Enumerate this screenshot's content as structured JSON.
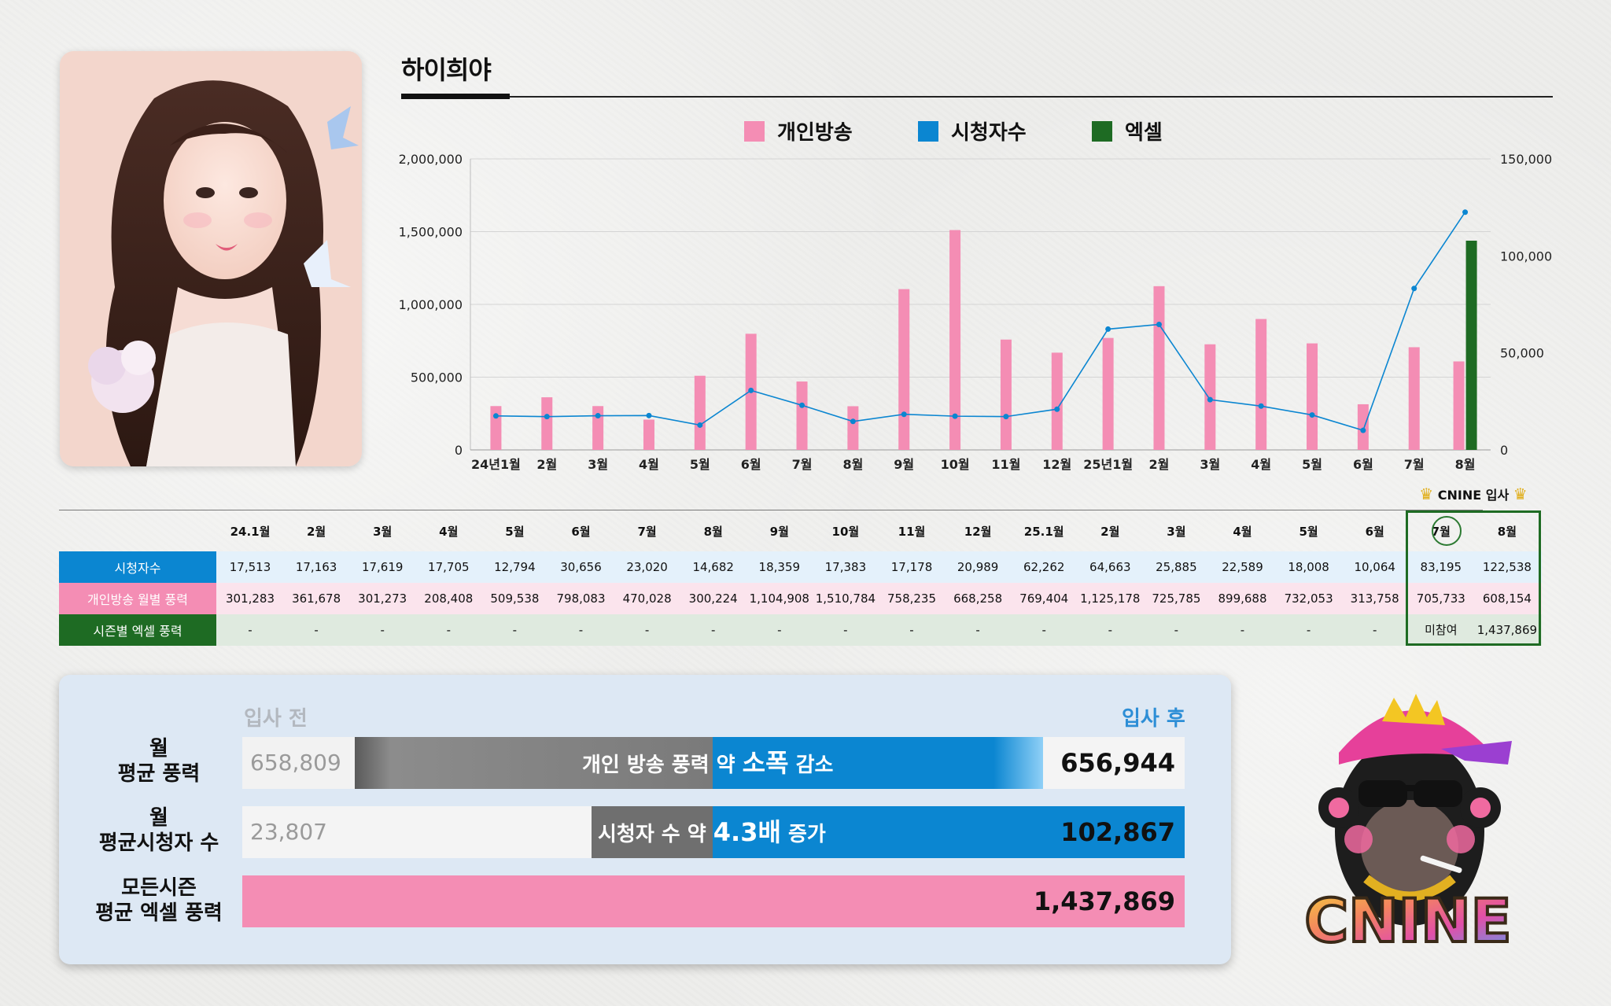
{
  "streamer": {
    "name": "하이희야"
  },
  "legend": [
    {
      "label": "개인방송",
      "color": "#f48db4"
    },
    {
      "label": "시청자수",
      "color": "#0b86d1"
    },
    {
      "label": "엑셀",
      "color": "#1e6b23"
    }
  ],
  "chart_data": {
    "type": "bar",
    "categories": [
      "24년1월",
      "2월",
      "3월",
      "4월",
      "5월",
      "6월",
      "7월",
      "8월",
      "9월",
      "10월",
      "11월",
      "12월",
      "25년1월",
      "2월",
      "3월",
      "4월",
      "5월",
      "6월",
      "7월",
      "8월"
    ],
    "series": [
      {
        "name": "개인방송",
        "type": "bar",
        "axis": "left",
        "color": "#f48db4",
        "values": [
          301283,
          361678,
          301273,
          208408,
          509538,
          798083,
          470028,
          300224,
          1104908,
          1510784,
          758235,
          668258,
          769404,
          1125178,
          725785,
          899688,
          732053,
          313758,
          705733,
          608154
        ]
      },
      {
        "name": "시청자수",
        "type": "line",
        "axis": "right",
        "color": "#0b86d1",
        "values": [
          17513,
          17163,
          17619,
          17705,
          12794,
          30656,
          23020,
          14682,
          18359,
          17383,
          17178,
          20989,
          62262,
          64663,
          25885,
          22589,
          18008,
          10064,
          83195,
          122538
        ]
      },
      {
        "name": "엑셀",
        "type": "bar",
        "axis": "left",
        "color": "#1e6b23",
        "values": [
          null,
          null,
          null,
          null,
          null,
          null,
          null,
          null,
          null,
          null,
          null,
          null,
          null,
          null,
          null,
          null,
          null,
          null,
          null,
          1437869
        ]
      }
    ],
    "ylim_left": [
      0,
      2000000
    ],
    "yticks_left": [
      "0",
      "500,000",
      "1,000,000",
      "1,500,000",
      "2,000,000"
    ],
    "ylim_right": [
      0,
      150000
    ],
    "yticks_right": [
      "0",
      "50,000",
      "100,000",
      "150,000"
    ],
    "grid": true
  },
  "table": {
    "headers": [
      "24.1월",
      "2월",
      "3월",
      "4월",
      "5월",
      "6월",
      "7월",
      "8월",
      "9월",
      "10월",
      "11월",
      "12월",
      "25.1월",
      "2월",
      "3월",
      "4월",
      "5월",
      "6월",
      "7월",
      "8월"
    ],
    "join_label": "CNINE 입사",
    "rows": [
      {
        "label": "시청자수",
        "label_color": "#0b86d1",
        "bg": "#e4f1fb",
        "cells": [
          "17,513",
          "17,163",
          "17,619",
          "17,705",
          "12,794",
          "30,656",
          "23,020",
          "14,682",
          "18,359",
          "17,383",
          "17,178",
          "20,989",
          "62,262",
          "64,663",
          "25,885",
          "22,589",
          "18,008",
          "10,064",
          "83,195",
          "122,538"
        ]
      },
      {
        "label": "개인방송 월별 풍력",
        "label_color": "#f48db4",
        "bg": "#fbe4ed",
        "cells": [
          "301,283",
          "361,678",
          "301,273",
          "208,408",
          "509,538",
          "798,083",
          "470,028",
          "300,224",
          "1,104,908",
          "1,510,784",
          "758,235",
          "668,258",
          "769,404",
          "1,125,178",
          "725,785",
          "899,688",
          "732,053",
          "313,758",
          "705,733",
          "608,154"
        ]
      },
      {
        "label": "시즌별 엑셀 풍력",
        "label_color": "#1e6b23",
        "bg": "#dfeadf",
        "cells": [
          "-",
          "-",
          "-",
          "-",
          "-",
          "-",
          "-",
          "-",
          "-",
          "-",
          "-",
          "-",
          "-",
          "-",
          "-",
          "-",
          "-",
          "-",
          "미참여",
          "1,437,869"
        ]
      }
    ]
  },
  "summary": {
    "before_label": "입사 전",
    "after_label": "입사 후",
    "rows": [
      {
        "label_line1": "월",
        "label_line2": "평균 풍력",
        "before": "658,809",
        "after": "656,944",
        "middle_prefix": "개인 방송 풍력 약 ",
        "middle_emph": "소폭",
        "middle_suffix": " 감소"
      },
      {
        "label_line1": "월",
        "label_line2": "평균시청자 수",
        "before": "23,807",
        "after": "102,867",
        "middle_prefix": "시청자 수 약 ",
        "middle_emph": "4.3배",
        "middle_suffix": " 증가"
      },
      {
        "label_line1": "모든시즌",
        "label_line2": "평균 엑셀 풍력",
        "value": "1,437,869"
      }
    ]
  },
  "logo": {
    "text": "CNINE"
  }
}
